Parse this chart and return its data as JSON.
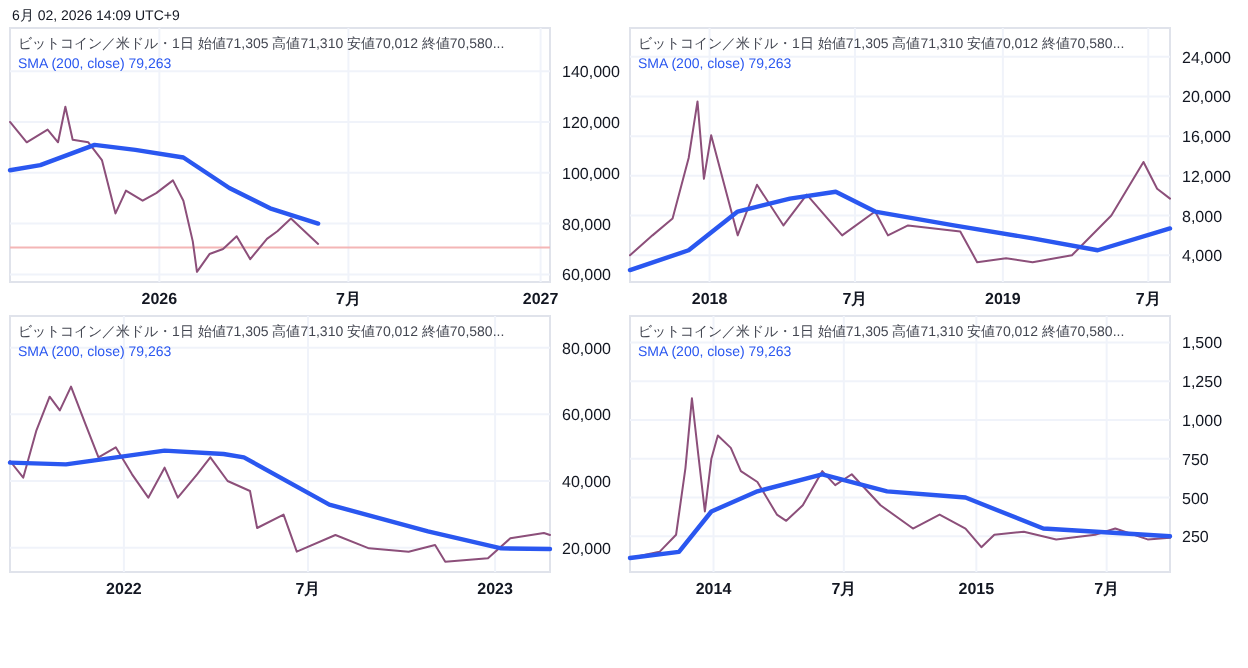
{
  "chart_data": [
    {
      "type": "line",
      "annotations": [
        "6月 02, 2026 14:09 UTC+9",
        "ビットコイン／米ドル・1日  始値71,305 高値71,310 安値70,012 終値70,580...",
        "SMA (200, close) 79,263"
      ],
      "x": [
        "2025-08-11",
        "2025-08-27",
        "2025-09-16",
        "2025-09-26",
        "2025-10-03",
        "2025-10-10",
        "2025-10-25",
        "2025-11-07",
        "2025-11-20",
        "2025-11-30",
        "2025-12-16",
        "2025-12-29",
        "2026-01-14",
        "2026-01-24",
        "2026-02-02",
        "2026-02-06",
        "2026-02-18",
        "2026-03-03",
        "2026-03-16",
        "2026-03-29",
        "2026-04-14",
        "2026-04-24",
        "2026-05-07",
        "2026-05-20",
        "2026-06-02"
      ],
      "series": [
        {
          "color": "#8c4f7a",
          "values": [
            120000,
            112000,
            117000,
            112000,
            126000,
            113000,
            112000,
            105000,
            84000,
            93000,
            89000,
            92000,
            97000,
            89000,
            73000,
            61000,
            68000,
            70000,
            75000,
            66000,
            74000,
            77000,
            82000,
            77000,
            72000
          ]
        },
        {
          "color": "#2a57f0",
          "x": [
            "2025-08-11",
            "2025-09-09",
            "2025-10-31",
            "2025-12-09",
            "2026-01-24",
            "2026-03-09",
            "2026-04-17",
            "2026-06-02"
          ],
          "values": [
            101000,
            103000,
            111000,
            109000,
            106000,
            94000,
            86000,
            80000
          ]
        }
      ],
      "ref_lines": [
        {
          "axis": "y",
          "value": 70580,
          "color": "#f4b6b6"
        }
      ],
      "xlim": [
        "2025-08-11",
        "2027-01-10"
      ],
      "xticks": [
        {
          "value": "2026-01-01",
          "label": "2026"
        },
        {
          "value": "2026-07-01",
          "label": "7月"
        },
        {
          "value": "2027-01-01",
          "label": "2027"
        }
      ],
      "ylim": [
        57000,
        157000
      ],
      "yticks": [
        {
          "value": 60000,
          "label": "60,000"
        },
        {
          "value": 80000,
          "label": "80,000"
        },
        {
          "value": 100000,
          "label": "100,000"
        },
        {
          "value": 120000,
          "label": "120,000"
        },
        {
          "value": 140000,
          "label": "140,000"
        }
      ],
      "grid": true
    },
    {
      "type": "line",
      "annotations": [
        "ビットコイン／米ドル・1日  始値71,305 高値71,310 安値70,012 終値70,580...",
        "SMA (200, close) 79,263"
      ],
      "x": [
        "2017-09-24",
        "2017-10-22",
        "2017-11-16",
        "2017-12-06",
        "2017-12-17",
        "2017-12-25",
        "2018-01-03",
        "2018-01-16",
        "2018-02-05",
        "2018-03-01",
        "2018-04-03",
        "2018-05-02",
        "2018-06-15",
        "2018-07-26",
        "2018-08-11",
        "2018-09-05",
        "2018-11-09",
        "2018-11-30",
        "2019-01-05",
        "2019-02-07",
        "2019-03-28",
        "2019-05-16",
        "2019-06-25",
        "2019-07-12",
        "2019-07-28"
      ],
      "series": [
        {
          "color": "#8c4f7a",
          "values": [
            4000,
            6000,
            7700,
            13800,
            19500,
            11700,
            16100,
            12100,
            6000,
            11100,
            7000,
            10100,
            6000,
            8400,
            6000,
            7000,
            6400,
            3300,
            3700,
            3300,
            4000,
            8000,
            13400,
            10700,
            9700
          ]
        },
        {
          "color": "#2a57f0",
          "x": [
            "2017-09-24",
            "2017-12-06",
            "2018-02-05",
            "2018-04-11",
            "2018-06-07",
            "2018-07-26",
            "2018-11-01",
            "2019-02-07",
            "2019-04-29",
            "2019-07-28"
          ],
          "values": [
            2500,
            4500,
            8400,
            9700,
            10400,
            8400,
            7000,
            5700,
            4500,
            6700
          ]
        }
      ],
      "xlim": [
        "2017-09-24",
        "2019-07-28"
      ],
      "xticks": [
        {
          "value": "2018-01-01",
          "label": "2018"
        },
        {
          "value": "2018-07-01",
          "label": "7月"
        },
        {
          "value": "2019-01-01",
          "label": "2019"
        },
        {
          "value": "2019-07-01",
          "label": "7月"
        }
      ],
      "ylim": [
        1300,
        26900
      ],
      "yticks": [
        {
          "value": 4000,
          "label": "4,000"
        },
        {
          "value": 8000,
          "label": "8,000"
        },
        {
          "value": 12000,
          "label": "12,000"
        },
        {
          "value": 16000,
          "label": "16,000"
        },
        {
          "value": 20000,
          "label": "20,000"
        },
        {
          "value": 24000,
          "label": "24,000"
        }
      ],
      "grid": true
    },
    {
      "type": "line",
      "annotations": [
        "ビットコイン／米ドル・1日  始値71,305 高値71,310 安値70,012 終値70,580...",
        "SMA (200, close) 79,263"
      ],
      "x": [
        "2021-09-11",
        "2021-09-24",
        "2021-10-07",
        "2021-10-20",
        "2021-10-30",
        "2021-11-10",
        "2021-11-24",
        "2021-12-07",
        "2021-12-24",
        "2022-01-09",
        "2022-01-25",
        "2022-02-10",
        "2022-02-23",
        "2022-03-14",
        "2022-03-27",
        "2022-04-13",
        "2022-05-05",
        "2022-05-12",
        "2022-06-07",
        "2022-06-20",
        "2022-07-28",
        "2022-08-30",
        "2022-10-08",
        "2022-11-03",
        "2022-11-13",
        "2022-12-25",
        "2023-01-16",
        "2023-02-18",
        "2023-02-24"
      ],
      "series": [
        {
          "color": "#8c4f7a",
          "values": [
            46000,
            41000,
            55200,
            65300,
            61200,
            68300,
            57200,
            47100,
            50100,
            42000,
            35000,
            44000,
            35000,
            42000,
            47100,
            40000,
            37000,
            25900,
            29900,
            18800,
            23800,
            19800,
            18800,
            20800,
            15800,
            16800,
            22800,
            24400,
            23800
          ]
        },
        {
          "color": "#2a57f0",
          "x": [
            "2021-09-11",
            "2021-11-05",
            "2022-02-10",
            "2022-04-09",
            "2022-04-29",
            "2022-07-22",
            "2022-10-27",
            "2023-01-07",
            "2023-02-24"
          ],
          "values": [
            45500,
            45000,
            49100,
            48100,
            47100,
            32900,
            24900,
            19800,
            19600
          ]
        }
      ],
      "xlim": [
        "2021-09-11",
        "2023-02-24"
      ],
      "xticks": [
        {
          "value": "2022-01-01",
          "label": "2022"
        },
        {
          "value": "2022-07-01",
          "label": "7月"
        },
        {
          "value": "2023-01-01",
          "label": "2023"
        }
      ],
      "ylim": [
        12700,
        89500
      ],
      "yticks": [
        {
          "value": 20000,
          "label": "20,000"
        },
        {
          "value": 40000,
          "label": "40,000"
        },
        {
          "value": 60000,
          "label": "60,000"
        },
        {
          "value": 80000,
          "label": "80,000"
        }
      ],
      "grid": true
    },
    {
      "type": "line",
      "annotations": [
        "ビットコイン／米ドル・1日  始値71,305 高値71,310 安値70,012 終値70,580...",
        "SMA (200, close) 79,263"
      ],
      "x": [
        "2013-09-07",
        "2013-10-18",
        "2013-11-10",
        "2013-11-23",
        "2013-12-02",
        "2013-12-11",
        "2013-12-20",
        "2013-12-29",
        "2014-01-07",
        "2014-01-25",
        "2014-02-08",
        "2014-03-03",
        "2014-03-30",
        "2014-04-12",
        "2014-05-05",
        "2014-06-01",
        "2014-06-19",
        "2014-07-12",
        "2014-08-21",
        "2014-10-05",
        "2014-11-11",
        "2014-12-17",
        "2015-01-08",
        "2015-01-26",
        "2015-03-08",
        "2015-04-22",
        "2015-06-15",
        "2015-07-13",
        "2015-08-27",
        "2015-09-27"
      ],
      "series": [
        {
          "color": "#8c4f7a",
          "values": [
            110,
            150,
            260,
            690,
            1140,
            770,
            410,
            750,
            900,
            820,
            670,
            600,
            390,
            350,
            450,
            670,
            580,
            650,
            450,
            300,
            390,
            300,
            180,
            260,
            280,
            230,
            260,
            300,
            230,
            240
          ]
        },
        {
          "color": "#2a57f0",
          "x": [
            "2013-09-07",
            "2013-11-14",
            "2013-12-29",
            "2014-03-03",
            "2014-06-01",
            "2014-08-30",
            "2014-12-17",
            "2015-04-04",
            "2015-09-27"
          ],
          "values": [
            110,
            150,
            410,
            540,
            650,
            540,
            500,
            300,
            250
          ]
        }
      ],
      "xlim": [
        "2013-09-07",
        "2015-09-27"
      ],
      "xticks": [
        {
          "value": "2014-01-01",
          "label": "2014"
        },
        {
          "value": "2014-07-01",
          "label": "7月"
        },
        {
          "value": "2015-01-01",
          "label": "2015"
        },
        {
          "value": "2015-07-01",
          "label": "7月"
        }
      ],
      "ylim": [
        20,
        1670
      ],
      "yticks": [
        250,
        500,
        750,
        {
          "value": 1000,
          "label": "1,000"
        },
        {
          "value": 1250,
          "label": "1,250"
        },
        {
          "value": 1500,
          "label": "1,500"
        }
      ],
      "grid": true
    }
  ]
}
